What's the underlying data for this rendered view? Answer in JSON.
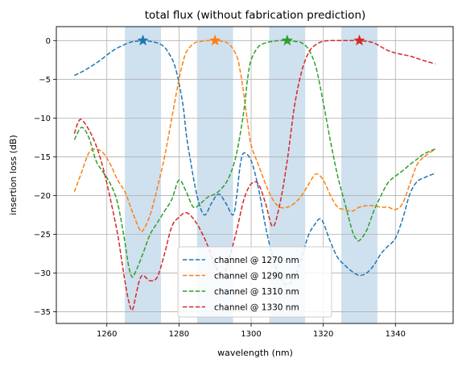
{
  "chart_data": {
    "type": "line",
    "title": "total flux (without fabrication prediction)",
    "xlabel": "wavelength (nm)",
    "ylabel": "insertion loss (dB)",
    "xlim": [
      1246,
      1356
    ],
    "ylim": [
      -36.5,
      1.8
    ],
    "xticks": [
      1260,
      1280,
      1300,
      1320,
      1340
    ],
    "yticks": [
      0,
      -5,
      -10,
      -15,
      -20,
      -25,
      -30,
      -35
    ],
    "grid": true,
    "legend_position": "lower-center",
    "bands": [
      [
        1265,
        1275
      ],
      [
        1285,
        1295
      ],
      [
        1305,
        1315
      ],
      [
        1325,
        1335
      ]
    ],
    "band_color": "#cfe0ee",
    "series": [
      {
        "name": "channel @ 1270 nm",
        "color": "#1f77b4",
        "marker": {
          "x": 1270,
          "y": 0
        },
        "x": [
          1251,
          1254,
          1258,
          1262,
          1266,
          1268,
          1270,
          1272,
          1275,
          1277,
          1279,
          1281,
          1282,
          1283,
          1285,
          1287,
          1289,
          1291,
          1293,
          1295,
          1296,
          1297,
          1298,
          1300,
          1302,
          1304,
          1306,
          1308,
          1310,
          1312,
          1314,
          1316,
          1318,
          1319,
          1320,
          1322,
          1324,
          1326,
          1328,
          1330,
          1332,
          1334,
          1336,
          1338,
          1340,
          1342,
          1344,
          1346,
          1348,
          1350,
          1351
        ],
        "y": [
          -4.5,
          -3.8,
          -2.6,
          -1.2,
          -0.3,
          -0.1,
          0,
          -0.1,
          -0.5,
          -1.5,
          -3.5,
          -8,
          -12,
          -15,
          -20,
          -22.5,
          -21,
          -19.8,
          -21,
          -22.5,
          -20,
          -16,
          -14.5,
          -15.5,
          -19,
          -24,
          -28,
          -30.5,
          -31.5,
          -30.5,
          -28,
          -25,
          -23.5,
          -23,
          -23.5,
          -26,
          -28,
          -29,
          -29.8,
          -30.3,
          -30,
          -29,
          -27.5,
          -26.5,
          -25.5,
          -23,
          -19.8,
          -18.2,
          -17.7,
          -17.3,
          -17.2
        ]
      },
      {
        "name": "channel @ 1290 nm",
        "color": "#ff7f0e",
        "marker": {
          "x": 1290,
          "y": 0
        },
        "x": [
          1251,
          1253,
          1255,
          1257,
          1259,
          1261,
          1263,
          1265,
          1267,
          1269,
          1270,
          1272,
          1274,
          1276,
          1278,
          1280,
          1281,
          1282,
          1284,
          1286,
          1288,
          1290,
          1292,
          1294,
          1296,
          1297,
          1298,
          1299,
          1300,
          1302,
          1304,
          1306,
          1308,
          1310,
          1312,
          1314,
          1316,
          1318,
          1320,
          1322,
          1324,
          1326,
          1328,
          1330,
          1332,
          1334,
          1336,
          1338,
          1340,
          1342,
          1344,
          1346,
          1348,
          1351
        ],
        "y": [
          -19.5,
          -17,
          -14.5,
          -14,
          -14.5,
          -16,
          -18,
          -19.5,
          -22,
          -24.3,
          -24.5,
          -22.5,
          -19,
          -15,
          -10,
          -5,
          -3,
          -1.5,
          -0.4,
          -0.1,
          0,
          0,
          -0.1,
          -0.5,
          -2,
          -4,
          -7,
          -10.5,
          -13.5,
          -16,
          -18.5,
          -20.5,
          -21.5,
          -21.5,
          -21,
          -20,
          -18.5,
          -17.2,
          -18,
          -20,
          -21.5,
          -21.8,
          -22,
          -21.5,
          -21.3,
          -21.3,
          -21.5,
          -21.5,
          -21.8,
          -21,
          -18.5,
          -16,
          -15,
          -14
        ]
      },
      {
        "name": "channel @ 1310 nm",
        "color": "#2ca02c",
        "marker": {
          "x": 1310,
          "y": 0
        },
        "x": [
          1251,
          1253,
          1255,
          1257,
          1259,
          1261,
          1263,
          1265,
          1266,
          1267,
          1268,
          1270,
          1272,
          1274,
          1276,
          1278,
          1280,
          1282,
          1284,
          1286,
          1288,
          1290,
          1292,
          1294,
          1296,
          1298,
          1299,
          1300,
          1302,
          1304,
          1306,
          1308,
          1310,
          1312,
          1314,
          1316,
          1318,
          1320,
          1322,
          1324,
          1326,
          1328,
          1329,
          1330,
          1332,
          1334,
          1336,
          1338,
          1340,
          1342,
          1344,
          1346,
          1348,
          1351
        ],
        "y": [
          -12.8,
          -11.2,
          -12.5,
          -15.5,
          -17,
          -18.5,
          -21,
          -26,
          -29,
          -30.5,
          -29.8,
          -27.5,
          -25,
          -23.5,
          -22,
          -20.5,
          -18,
          -19.5,
          -21.5,
          -21,
          -20.2,
          -19.8,
          -19,
          -17.5,
          -14.5,
          -9,
          -5,
          -2.5,
          -0.8,
          -0.3,
          -0.1,
          0,
          0,
          -0.1,
          -0.3,
          -1.2,
          -3.5,
          -8,
          -13,
          -17.5,
          -21,
          -24.5,
          -25.5,
          -25.8,
          -24.5,
          -22,
          -20,
          -18.3,
          -17.5,
          -16.8,
          -16,
          -15.3,
          -14.6,
          -14
        ]
      },
      {
        "name": "channel @ 1330 nm",
        "color": "#d62728",
        "marker": {
          "x": 1330,
          "y": 0
        },
        "x": [
          1251,
          1252,
          1253,
          1255,
          1257,
          1259,
          1261,
          1263,
          1264,
          1265,
          1266,
          1267,
          1268,
          1269,
          1270,
          1272,
          1274,
          1276,
          1278,
          1280,
          1282,
          1284,
          1286,
          1288,
          1290,
          1292,
          1294,
          1296,
          1298,
          1300,
          1302,
          1304,
          1306,
          1308,
          1310,
          1312,
          1314,
          1316,
          1318,
          1320,
          1322,
          1324,
          1326,
          1328,
          1330,
          1332,
          1334,
          1336,
          1338,
          1340,
          1342,
          1344,
          1346,
          1348,
          1351
        ],
        "y": [
          -12,
          -10.6,
          -10.2,
          -11.5,
          -13.5,
          -16.5,
          -20.5,
          -25,
          -28,
          -31,
          -33.5,
          -34.8,
          -33,
          -31,
          -30.3,
          -31,
          -30.5,
          -27.5,
          -24,
          -22.8,
          -22.2,
          -23,
          -24.5,
          -26.5,
          -29,
          -30.5,
          -28,
          -24.5,
          -20.5,
          -18.5,
          -18.5,
          -21,
          -24,
          -21,
          -15.5,
          -8.5,
          -4,
          -1.5,
          -0.5,
          -0.1,
          0,
          0,
          0,
          0,
          0,
          -0.1,
          -0.3,
          -0.8,
          -1.3,
          -1.6,
          -1.8,
          -2,
          -2.3,
          -2.6,
          -3
        ]
      }
    ]
  }
}
